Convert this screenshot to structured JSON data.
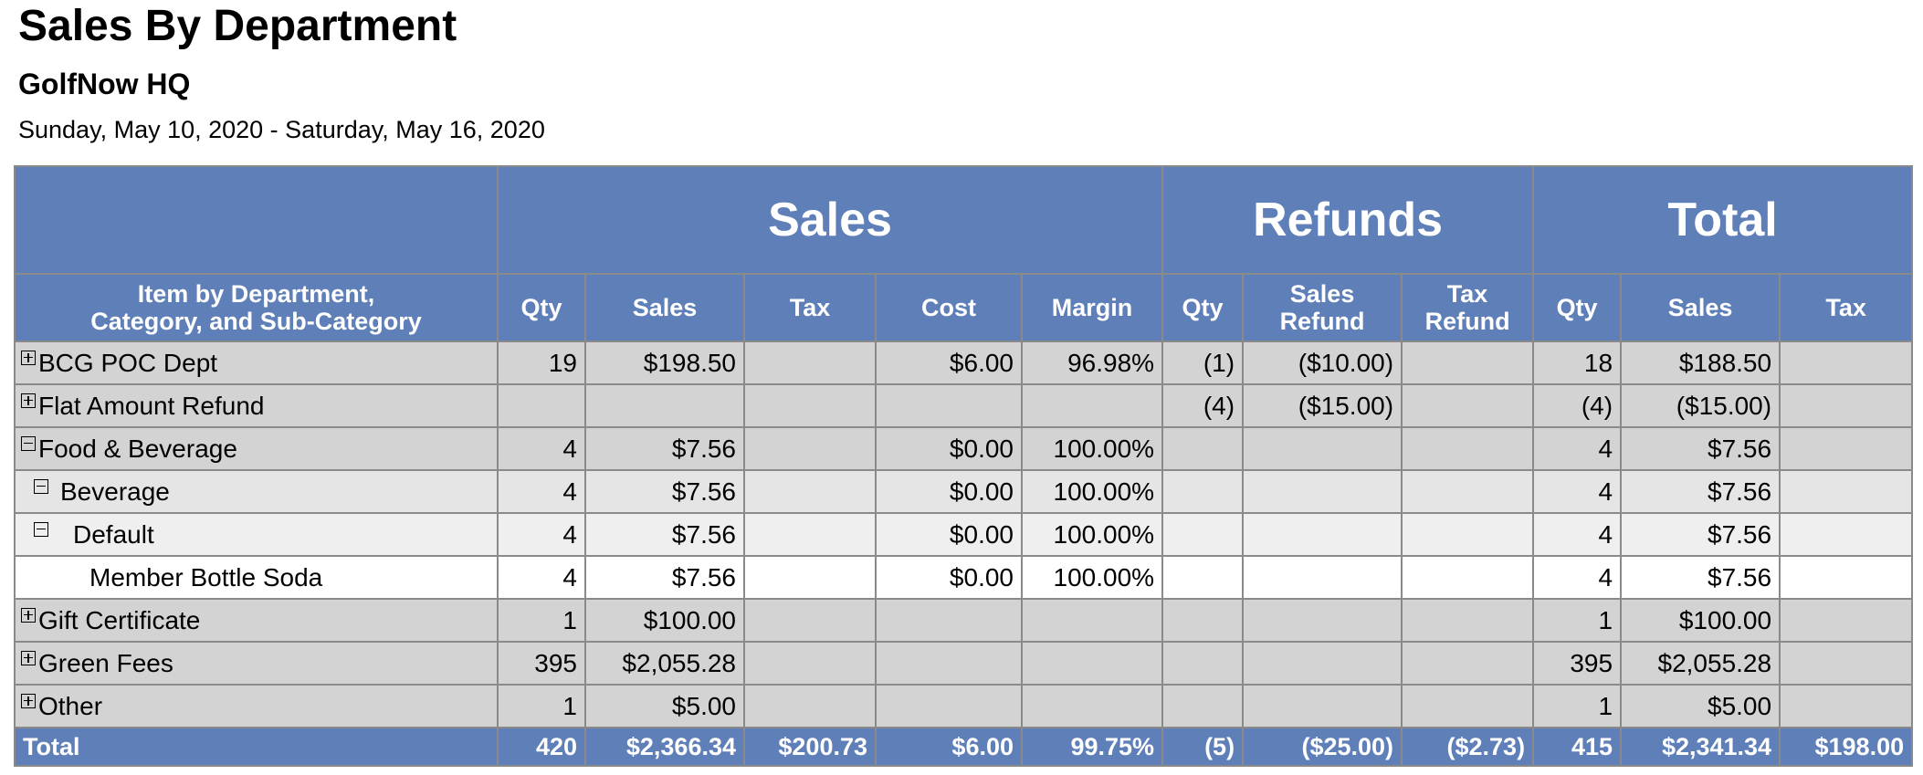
{
  "report": {
    "title": "Sales By Department",
    "subtitle": "GolfNow HQ",
    "date_range": "Sunday, May 10, 2020 - Saturday, May 16, 2020"
  },
  "table": {
    "groups": {
      "sales": "Sales",
      "refunds": "Refunds",
      "total": "Total"
    },
    "columns": {
      "item": "Item by Department,\nCategory, and Sub-Category",
      "qty": "Qty",
      "sales": "Sales",
      "tax": "Tax",
      "cost": "Cost",
      "margin": "Margin",
      "r_qty": "Qty",
      "r_sales_refund": "Sales\nRefund",
      "r_tax_refund": "Tax\nRefund",
      "t_qty": "Qty",
      "t_sales": "Sales",
      "t_tax": "Tax"
    },
    "rows": [
      {
        "name": "BCG POC Dept",
        "level": 0,
        "toggle": "expand",
        "qty": "19",
        "sales": "$198.50",
        "tax": "",
        "cost": "$6.00",
        "margin": "96.98%",
        "r_qty": "(1)",
        "r_sales": "($10.00)",
        "r_tax": "",
        "t_qty": "18",
        "t_sales": "$188.50",
        "t_tax": ""
      },
      {
        "name": "Flat Amount Refund",
        "level": 0,
        "toggle": "expand",
        "qty": "",
        "sales": "",
        "tax": "",
        "cost": "",
        "margin": "",
        "r_qty": "(4)",
        "r_sales": "($15.00)",
        "r_tax": "",
        "t_qty": "(4)",
        "t_sales": "($15.00)",
        "t_tax": ""
      },
      {
        "name": "Food & Beverage",
        "level": 0,
        "toggle": "collapse",
        "qty": "4",
        "sales": "$7.56",
        "tax": "",
        "cost": "$0.00",
        "margin": "100.00%",
        "r_qty": "",
        "r_sales": "",
        "r_tax": "",
        "t_qty": "4",
        "t_sales": "$7.56",
        "t_tax": ""
      },
      {
        "name": "Beverage",
        "level": 1,
        "toggle": "collapse",
        "qty": "4",
        "sales": "$7.56",
        "tax": "",
        "cost": "$0.00",
        "margin": "100.00%",
        "r_qty": "",
        "r_sales": "",
        "r_tax": "",
        "t_qty": "4",
        "t_sales": "$7.56",
        "t_tax": ""
      },
      {
        "name": "Default",
        "level": 2,
        "toggle": "collapse",
        "qty": "4",
        "sales": "$7.56",
        "tax": "",
        "cost": "$0.00",
        "margin": "100.00%",
        "r_qty": "",
        "r_sales": "",
        "r_tax": "",
        "t_qty": "4",
        "t_sales": "$7.56",
        "t_tax": ""
      },
      {
        "name": "Member Bottle Soda",
        "level": 3,
        "toggle": "",
        "qty": "4",
        "sales": "$7.56",
        "tax": "",
        "cost": "$0.00",
        "margin": "100.00%",
        "r_qty": "",
        "r_sales": "",
        "r_tax": "",
        "t_qty": "4",
        "t_sales": "$7.56",
        "t_tax": ""
      },
      {
        "name": "Gift Certificate",
        "level": 0,
        "toggle": "expand",
        "qty": "1",
        "sales": "$100.00",
        "tax": "",
        "cost": "",
        "margin": "",
        "r_qty": "",
        "r_sales": "",
        "r_tax": "",
        "t_qty": "1",
        "t_sales": "$100.00",
        "t_tax": ""
      },
      {
        "name": "Green Fees",
        "level": 0,
        "toggle": "expand",
        "qty": "395",
        "sales": "$2,055.28",
        "tax": "",
        "cost": "",
        "margin": "",
        "r_qty": "",
        "r_sales": "",
        "r_tax": "",
        "t_qty": "395",
        "t_sales": "$2,055.28",
        "t_tax": ""
      },
      {
        "name": "Other",
        "level": 0,
        "toggle": "expand",
        "qty": "1",
        "sales": "$5.00",
        "tax": "",
        "cost": "",
        "margin": "",
        "r_qty": "",
        "r_sales": "",
        "r_tax": "",
        "t_qty": "1",
        "t_sales": "$5.00",
        "t_tax": ""
      }
    ],
    "total": {
      "name": "Total",
      "qty": "420",
      "sales": "$2,366.34",
      "tax": "$200.73",
      "cost": "$6.00",
      "margin": "99.75%",
      "r_qty": "(5)",
      "r_sales": "($25.00)",
      "r_tax": "($2.73)",
      "t_qty": "415",
      "t_sales": "$2,341.34",
      "t_tax": "$198.00"
    }
  },
  "colors": {
    "header": "#5f7fb8",
    "level0": "#d3d3d3",
    "level1": "#e5e5e5",
    "level2": "#efefef",
    "level3": "#ffffff"
  }
}
